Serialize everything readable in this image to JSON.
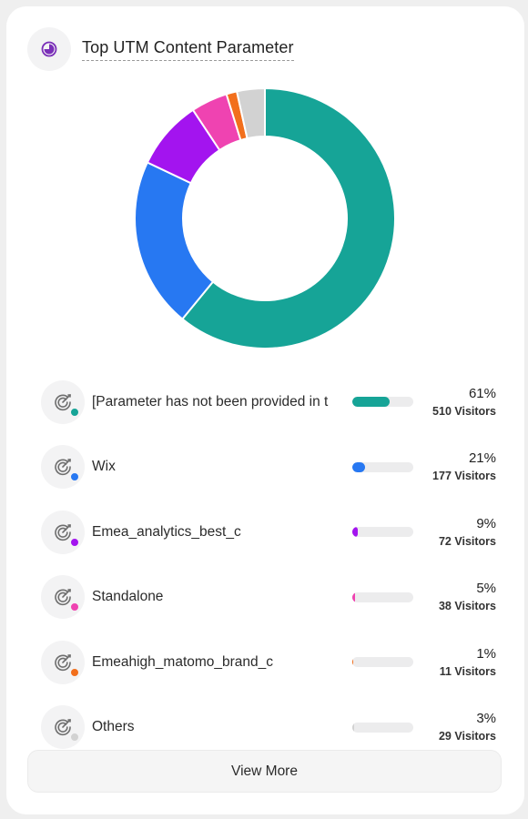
{
  "widget": {
    "title": "Top UTM Content Parameter",
    "view_more_label": "View More"
  },
  "chart_data": {
    "type": "pie",
    "variant": "donut",
    "categories": [
      "[Parameter has not been provided in the URL]",
      "Wix",
      "Emea_analytics_best_c",
      "Standalone",
      "Emeahigh_matomo_brand_c",
      "Others"
    ],
    "values": [
      510,
      177,
      72,
      38,
      11,
      29
    ],
    "colors": [
      "#16a497",
      "#2778f2",
      "#a314ef",
      "#ef43b1",
      "#f26f1c",
      "#d2d2d2"
    ]
  },
  "items": [
    {
      "label": "[Parameter has not been provided in the URL]",
      "percent": "61%",
      "visitors": "510 Visitors",
      "share": 0.61,
      "color": "#16a497",
      "icon": "target-icon"
    },
    {
      "label": "Wix",
      "percent": "21%",
      "visitors": "177 Visitors",
      "share": 0.21,
      "color": "#2778f2",
      "icon": "target-icon"
    },
    {
      "label": "Emea_analytics_best_c",
      "percent": "9%",
      "visitors": "72 Visitors",
      "share": 0.09,
      "color": "#a314ef",
      "icon": "target-icon"
    },
    {
      "label": "Standalone",
      "percent": "5%",
      "visitors": "38 Visitors",
      "share": 0.05,
      "color": "#ef43b1",
      "icon": "target-icon"
    },
    {
      "label": "Emeahigh_matomo_brand_c",
      "percent": "1%",
      "visitors": "11 Visitors",
      "share": 0.01,
      "color": "#f26f1c",
      "icon": "target-icon"
    },
    {
      "label": "Others",
      "percent": "3%",
      "visitors": "29 Visitors",
      "share": 0.03,
      "color": "#d2d2d2",
      "icon": "target-icon"
    }
  ]
}
